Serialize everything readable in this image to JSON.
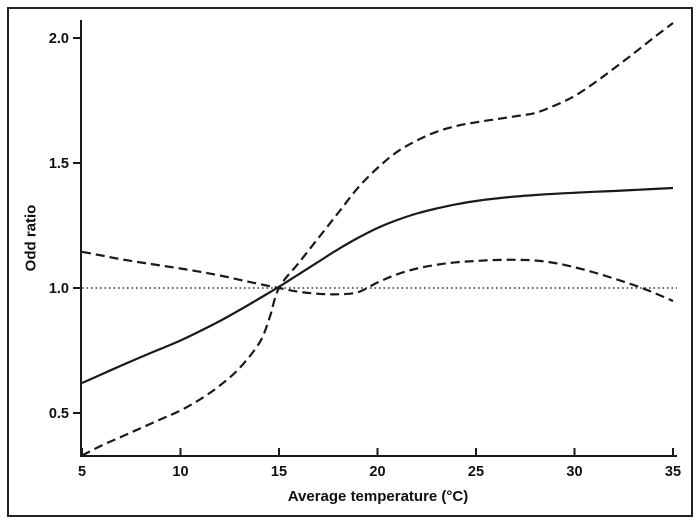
{
  "figure": {
    "background": "#ffffff",
    "border_color": "#222222",
    "line_color": "#1a1a1a",
    "reference_line_color": "#3a3a3a"
  },
  "chart_data": {
    "type": "line",
    "title": "",
    "xlabel": "Average temperature (°C)",
    "ylabel": "Odd ratio",
    "xlim": [
      5,
      35
    ],
    "ylim": [
      0.32,
      2.08
    ],
    "x_ticks": [
      5,
      10,
      15,
      20,
      25,
      30,
      35
    ],
    "x_tick_labels": [
      "5",
      "10",
      "15",
      "20",
      "25",
      "30",
      "35"
    ],
    "y_ticks": [
      0.5,
      1.0,
      1.5,
      2.0
    ],
    "y_tick_labels": [
      "0.5",
      "1.0",
      "1.5",
      "2.0"
    ],
    "grid": false,
    "legend_position": "none",
    "reference_line": {
      "y": 1.0,
      "style": "dotted"
    },
    "series": [
      {
        "name": "odds-ratio-estimate",
        "style": "solid",
        "x": [
          5,
          6,
          7,
          8,
          9,
          10,
          11,
          12,
          13,
          14,
          15,
          16,
          17,
          18,
          19,
          20,
          21,
          22,
          23,
          24,
          25,
          26,
          27,
          28,
          29,
          30,
          31,
          32,
          33,
          34,
          35
        ],
        "y": [
          0.62,
          0.655,
          0.69,
          0.724,
          0.757,
          0.79,
          0.828,
          0.868,
          0.912,
          0.958,
          1.005,
          1.055,
          1.105,
          1.155,
          1.2,
          1.24,
          1.272,
          1.298,
          1.318,
          1.335,
          1.348,
          1.358,
          1.366,
          1.372,
          1.377,
          1.381,
          1.385,
          1.388,
          1.392,
          1.396,
          1.4
        ]
      },
      {
        "name": "ci-bound-steep-dashed",
        "style": "dashed",
        "x": [
          5,
          6,
          7,
          8,
          9,
          10,
          11,
          12,
          13,
          14,
          14.5,
          15,
          16,
          17,
          18,
          19,
          20,
          21,
          22,
          23,
          24,
          25,
          26,
          27,
          28,
          29,
          30,
          31,
          32,
          33,
          34,
          35
        ],
        "y": [
          0.33,
          0.37,
          0.405,
          0.44,
          0.475,
          0.51,
          0.555,
          0.61,
          0.68,
          0.78,
          0.875,
          1.0,
          1.1,
          1.2,
          1.3,
          1.4,
          1.48,
          1.545,
          1.59,
          1.625,
          1.648,
          1.663,
          1.675,
          1.687,
          1.7,
          1.73,
          1.768,
          1.82,
          1.878,
          1.938,
          2.0,
          2.06
        ]
      },
      {
        "name": "ci-bound-flat-dashed",
        "style": "dashed",
        "x": [
          5,
          6,
          7,
          8,
          9,
          10,
          11,
          12,
          13,
          14,
          15,
          16,
          17,
          18,
          19,
          20,
          21,
          22,
          23,
          24,
          25,
          26,
          27,
          28,
          29,
          30,
          31,
          32,
          33,
          34,
          35
        ],
        "y": [
          1.145,
          1.13,
          1.115,
          1.102,
          1.09,
          1.078,
          1.065,
          1.05,
          1.033,
          1.016,
          1.0,
          0.985,
          0.977,
          0.975,
          0.983,
          1.022,
          1.055,
          1.078,
          1.093,
          1.103,
          1.108,
          1.112,
          1.113,
          1.11,
          1.1,
          1.083,
          1.062,
          1.038,
          1.012,
          0.982,
          0.948
        ]
      }
    ]
  }
}
